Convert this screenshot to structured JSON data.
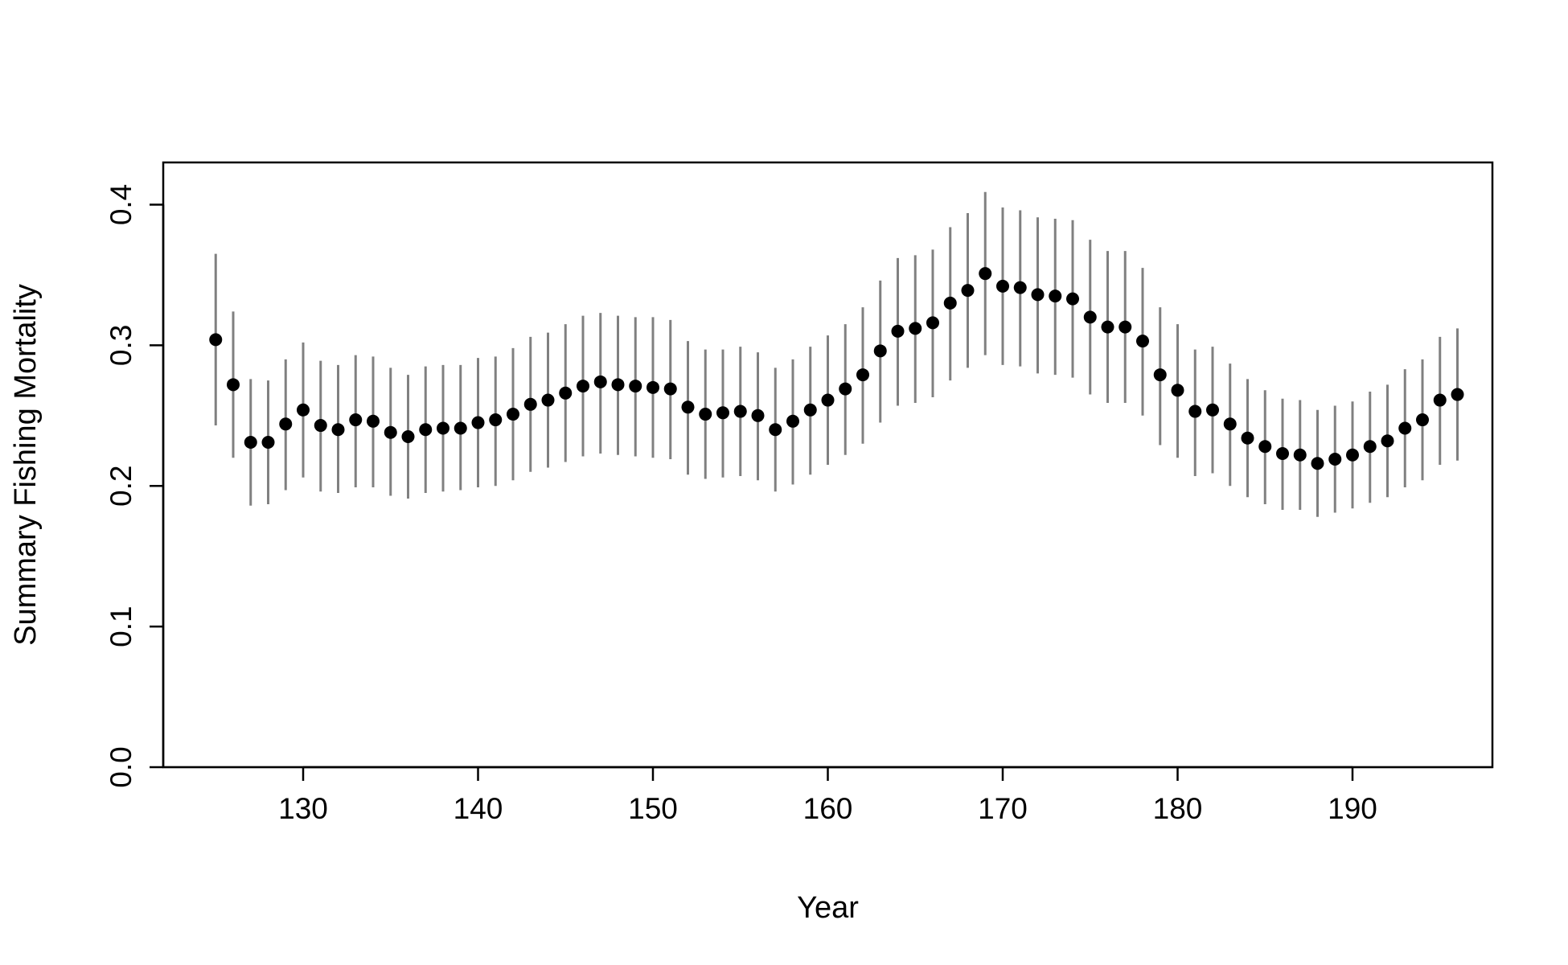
{
  "chart_data": {
    "type": "scatter",
    "title": "",
    "xlabel": "Year",
    "ylabel": "Summary Fishing Mortality",
    "xlim": [
      122,
      198
    ],
    "ylim": [
      0,
      0.43
    ],
    "x_ticks": [
      130,
      140,
      150,
      160,
      170,
      180,
      190
    ],
    "x_tick_labels": [
      "130",
      "140",
      "150",
      "160",
      "170",
      "180",
      "190"
    ],
    "y_ticks": [
      0.0,
      0.1,
      0.2,
      0.3,
      0.4
    ],
    "y_tick_labels": [
      "0.0",
      "0.1",
      "0.2",
      "0.3",
      "0.4"
    ],
    "reference_line_y": 0,
    "grid": false,
    "colors": {
      "points": "#000000",
      "error_bars": "#808080",
      "reference_line": "#bebebe",
      "axes": "#000000"
    },
    "series": [
      {
        "x": [
          125,
          126,
          127,
          128,
          129,
          130,
          131,
          132,
          133,
          134,
          135,
          136,
          137,
          138,
          139,
          140,
          141,
          142,
          143,
          144,
          145,
          146,
          147,
          148,
          149,
          150,
          151,
          152,
          153,
          154,
          155,
          156,
          157,
          158,
          159,
          160,
          161,
          162,
          163,
          164,
          165,
          166,
          167,
          168,
          169,
          170,
          171,
          172,
          173,
          174,
          175,
          176,
          177,
          178,
          179,
          180,
          181,
          182,
          183,
          184,
          185,
          186,
          187,
          188,
          189,
          190,
          191,
          192,
          193,
          194,
          195,
          196
        ],
        "y": [
          0.304,
          0.272,
          0.231,
          0.231,
          0.244,
          0.254,
          0.243,
          0.24,
          0.247,
          0.246,
          0.238,
          0.235,
          0.24,
          0.241,
          0.241,
          0.245,
          0.247,
          0.251,
          0.258,
          0.261,
          0.266,
          0.271,
          0.274,
          0.272,
          0.271,
          0.27,
          0.269,
          0.256,
          0.251,
          0.252,
          0.253,
          0.25,
          0.24,
          0.246,
          0.254,
          0.261,
          0.269,
          0.279,
          0.296,
          0.31,
          0.312,
          0.316,
          0.33,
          0.339,
          0.351,
          0.342,
          0.341,
          0.336,
          0.335,
          0.333,
          0.32,
          0.313,
          0.313,
          0.303,
          0.279,
          0.268,
          0.253,
          0.254,
          0.244,
          0.234,
          0.228,
          0.223,
          0.222,
          0.216,
          0.219,
          0.222,
          0.228,
          0.232,
          0.241,
          0.247,
          0.261,
          0.265
        ],
        "lower": [
          0.243,
          0.22,
          0.186,
          0.187,
          0.197,
          0.206,
          0.196,
          0.195,
          0.199,
          0.199,
          0.193,
          0.191,
          0.195,
          0.196,
          0.197,
          0.199,
          0.2,
          0.204,
          0.21,
          0.213,
          0.217,
          0.221,
          0.223,
          0.222,
          0.221,
          0.22,
          0.219,
          0.208,
          0.205,
          0.206,
          0.207,
          0.204,
          0.196,
          0.201,
          0.208,
          0.215,
          0.222,
          0.23,
          0.245,
          0.257,
          0.259,
          0.263,
          0.275,
          0.284,
          0.293,
          0.286,
          0.285,
          0.28,
          0.279,
          0.277,
          0.265,
          0.259,
          0.259,
          0.25,
          0.229,
          0.22,
          0.207,
          0.209,
          0.2,
          0.192,
          0.187,
          0.183,
          0.183,
          0.178,
          0.181,
          0.184,
          0.188,
          0.192,
          0.199,
          0.204,
          0.215,
          0.218
        ],
        "upper": [
          0.365,
          0.324,
          0.276,
          0.275,
          0.29,
          0.302,
          0.289,
          0.286,
          0.293,
          0.292,
          0.284,
          0.279,
          0.285,
          0.286,
          0.286,
          0.291,
          0.292,
          0.298,
          0.306,
          0.309,
          0.315,
          0.321,
          0.323,
          0.321,
          0.32,
          0.32,
          0.318,
          0.303,
          0.297,
          0.297,
          0.299,
          0.295,
          0.284,
          0.29,
          0.299,
          0.307,
          0.315,
          0.327,
          0.346,
          0.362,
          0.364,
          0.368,
          0.384,
          0.394,
          0.409,
          0.398,
          0.396,
          0.391,
          0.39,
          0.389,
          0.375,
          0.367,
          0.367,
          0.355,
          0.327,
          0.315,
          0.297,
          0.299,
          0.287,
          0.276,
          0.268,
          0.262,
          0.261,
          0.254,
          0.257,
          0.26,
          0.267,
          0.272,
          0.283,
          0.29,
          0.306,
          0.312
        ]
      }
    ]
  }
}
